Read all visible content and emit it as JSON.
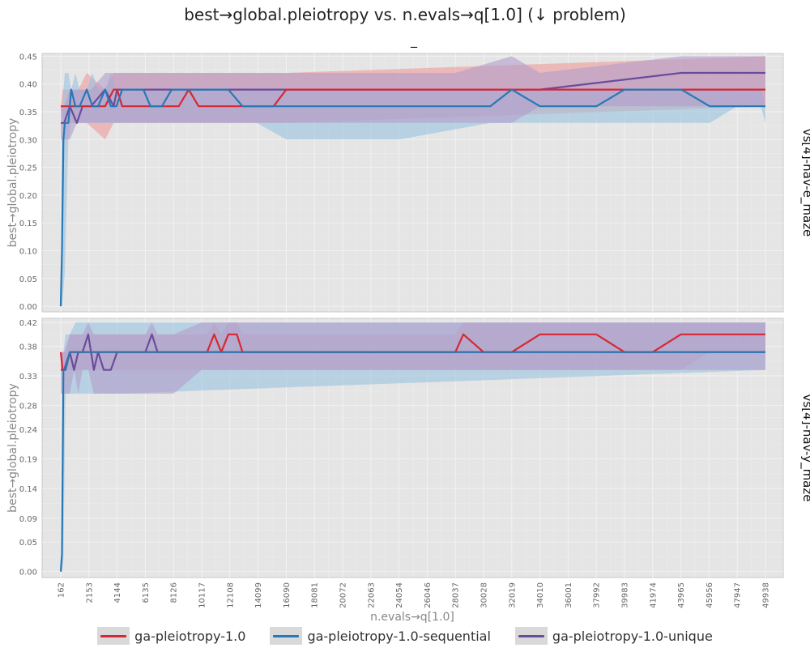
{
  "figure": {
    "title": "best→global.pleiotropy vs. n.evals→q[1.0] (↓ problem)",
    "subtitle": "_"
  },
  "chart_data": {
    "type": "line",
    "title": "best→global.pleiotropy vs. n.evals→q[1.0] (↓ problem)",
    "subtitle": "_",
    "xlabel": "n.evals→q[1.0]",
    "x_ticks": [
      162,
      2153,
      4144,
      6135,
      8126,
      10117,
      12108,
      14099,
      16090,
      18081,
      20072,
      22063,
      24054,
      26046,
      28037,
      30028,
      32019,
      34010,
      36001,
      37992,
      39983,
      41974,
      43965,
      45956,
      47947,
      49938
    ],
    "xlim": [
      162,
      49938
    ],
    "grid": true,
    "legend_placement": "bottom",
    "colors": {
      "ga-pleiotropy-1.0": "#d62833",
      "ga-pleiotropy-1.0-sequential": "#2878b5",
      "ga-pleiotropy-1.0-unique": "#6a4c9c",
      "panel_bg": "#e5e5e5",
      "band_red": "#ef9a9a",
      "band_blue": "#9ac3e0",
      "band_purple": "#b39ccc"
    },
    "panels": [
      {
        "facet_label": "vs[4]-nav-e_maze",
        "ylabel": "best→global.pleiotropy",
        "y_ticks": [
          "0.00",
          "0.05",
          "0.10",
          "0.15",
          "0.20",
          "0.25",
          "0.30",
          "0.35",
          "0.40",
          "0.45"
        ],
        "ylim": [
          -0.01,
          0.455
        ],
        "series": [
          {
            "name": "ga-pleiotropy-1.0",
            "x": [
              162,
              300,
              900,
              1400,
              2000,
              3300,
              3900,
              4144,
              4500,
              8500,
              9200,
              9900,
              12300,
              13500,
              15200,
              16090,
              49938
            ],
            "y": [
              0.36,
              0.36,
              0.36,
              0.36,
              0.36,
              0.36,
              0.39,
              0.39,
              0.36,
              0.36,
              0.39,
              0.36,
              0.36,
              0.36,
              0.36,
              0.39,
              0.39
            ],
            "band_low": [
              0.36,
              0.33,
              0.33,
              0.33,
              0.33,
              0.3,
              0.33,
              0.33,
              0.33,
              0.33,
              0.33,
              0.33,
              0.33,
              0.33,
              0.33,
              0.33,
              0.36
            ],
            "band_high": [
              0.36,
              0.39,
              0.39,
              0.39,
              0.42,
              0.39,
              0.42,
              0.42,
              0.42,
              0.42,
              0.42,
              0.42,
              0.42,
              0.42,
              0.42,
              0.42,
              0.45
            ]
          },
          {
            "name": "ga-pleiotropy-1.0-sequential",
            "x": [
              162,
              250,
              350,
              450,
              700,
              900,
              1200,
              1500,
              2000,
              2400,
              2800,
              3300,
              3700,
              4100,
              4500,
              5200,
              6000,
              6500,
              7300,
              8000,
              9000,
              12000,
              13000,
              14000,
              16090,
              20000,
              24000,
              24054,
              30500,
              32019,
              34010,
              38000,
              39983,
              41000,
              44000,
              46000,
              47947,
              49600,
              49938
            ],
            "y": [
              0.0,
              0.1,
              0.3,
              0.33,
              0.33,
              0.39,
              0.36,
              0.36,
              0.39,
              0.36,
              0.36,
              0.39,
              0.36,
              0.36,
              0.39,
              0.39,
              0.39,
              0.36,
              0.36,
              0.39,
              0.39,
              0.39,
              0.36,
              0.36,
              0.36,
              0.36,
              0.36,
              0.36,
              0.36,
              0.39,
              0.36,
              0.36,
              0.39,
              0.39,
              0.39,
              0.36,
              0.36,
              0.36,
              0.36
            ],
            "band_low": [
              0.0,
              0.0,
              0.03,
              0.06,
              0.3,
              0.33,
              0.33,
              0.33,
              0.33,
              0.33,
              0.33,
              0.33,
              0.33,
              0.33,
              0.33,
              0.33,
              0.33,
              0.33,
              0.33,
              0.33,
              0.33,
              0.33,
              0.33,
              0.33,
              0.3,
              0.3,
              0.3,
              0.3,
              0.33,
              0.33,
              0.33,
              0.33,
              0.33,
              0.33,
              0.33,
              0.33,
              0.36,
              0.36,
              0.33
            ],
            "band_high": [
              0.0,
              0.33,
              0.39,
              0.42,
              0.42,
              0.39,
              0.42,
              0.39,
              0.39,
              0.42,
              0.39,
              0.39,
              0.42,
              0.39,
              0.39,
              0.39,
              0.39,
              0.39,
              0.39,
              0.39,
              0.39,
              0.39,
              0.39,
              0.39,
              0.39,
              0.39,
              0.39,
              0.39,
              0.39,
              0.39,
              0.39,
              0.39,
              0.39,
              0.39,
              0.39,
              0.39,
              0.39,
              0.39,
              0.36
            ]
          },
          {
            "name": "ga-pleiotropy-1.0-unique",
            "x": [
              162,
              400,
              800,
              1300,
              1700,
              2300,
              3300,
              3900,
              4144,
              4500,
              28000,
              28037,
              32019,
              34010,
              44000,
              49938
            ],
            "y": [
              0.33,
              0.33,
              0.36,
              0.33,
              0.36,
              0.36,
              0.39,
              0.36,
              0.39,
              0.39,
              0.39,
              0.39,
              0.39,
              0.39,
              0.42,
              0.42
            ],
            "band_low": [
              0.3,
              0.3,
              0.3,
              0.33,
              0.33,
              0.33,
              0.33,
              0.33,
              0.33,
              0.33,
              0.33,
              0.33,
              0.33,
              0.36,
              0.36,
              0.36
            ],
            "band_high": [
              0.36,
              0.36,
              0.39,
              0.39,
              0.39,
              0.39,
              0.42,
              0.42,
              0.42,
              0.42,
              0.42,
              0.42,
              0.45,
              0.42,
              0.45,
              0.45
            ]
          }
        ]
      },
      {
        "facet_label": "vs[4]-nav-y_maze",
        "ylabel": "best→global.pleiotropy",
        "y_ticks": [
          "0.00",
          "0.05",
          "0.09",
          "0.14",
          "0.19",
          "0.24",
          "0.28",
          "0.33",
          "0.38",
          "0.42"
        ],
        "ylim": [
          -0.01,
          0.427
        ],
        "series": [
          {
            "name": "ga-pleiotropy-1.0",
            "x": [
              162,
              300,
              500,
              800,
              1200,
              2153,
              4144,
              6135,
              8126,
              10500,
              11000,
              11500,
              12000,
              12600,
              13000,
              14099,
              18081,
              22063,
              26046,
              28037,
              28600,
              30028,
              32019,
              34010,
              36001,
              37992,
              39983,
              41974,
              43965,
              45956,
              47947,
              49938
            ],
            "y": [
              0.37,
              0.34,
              0.34,
              0.37,
              0.37,
              0.37,
              0.37,
              0.37,
              0.37,
              0.37,
              0.4,
              0.37,
              0.4,
              0.4,
              0.37,
              0.37,
              0.37,
              0.37,
              0.37,
              0.37,
              0.4,
              0.37,
              0.37,
              0.4,
              0.4,
              0.4,
              0.37,
              0.37,
              0.4,
              0.4,
              0.4,
              0.4
            ],
            "band_low": [
              0.34,
              0.34,
              0.34,
              0.34,
              0.34,
              0.34,
              0.34,
              0.34,
              0.34,
              0.34,
              0.34,
              0.34,
              0.34,
              0.34,
              0.34,
              0.34,
              0.34,
              0.34,
              0.34,
              0.34,
              0.34,
              0.34,
              0.34,
              0.34,
              0.34,
              0.34,
              0.34,
              0.34,
              0.34,
              0.37,
              0.37,
              0.37
            ],
            "band_high": [
              0.37,
              0.37,
              0.37,
              0.4,
              0.4,
              0.4,
              0.4,
              0.4,
              0.4,
              0.4,
              0.42,
              0.4,
              0.42,
              0.42,
              0.4,
              0.4,
              0.4,
              0.4,
              0.4,
              0.4,
              0.42,
              0.42,
              0.42,
              0.42,
              0.42,
              0.42,
              0.42,
              0.42,
              0.42,
              0.42,
              0.42,
              0.42
            ]
          },
          {
            "name": "ga-pleiotropy-1.0-sequential",
            "x": [
              162,
              250,
              350,
              500,
              800,
              1200,
              2153,
              4144,
              49938
            ],
            "y": [
              0.0,
              0.03,
              0.34,
              0.34,
              0.37,
              0.37,
              0.37,
              0.37,
              0.37
            ],
            "band_low": [
              0.0,
              0.0,
              0.02,
              0.3,
              0.3,
              0.3,
              0.3,
              0.3,
              0.34
            ],
            "band_high": [
              0.0,
              0.05,
              0.37,
              0.4,
              0.4,
              0.42,
              0.42,
              0.42,
              0.42
            ]
          },
          {
            "name": "ga-pleiotropy-1.0-unique",
            "x": [
              162,
              400,
              800,
              1100,
              1400,
              1700,
              2100,
              2500,
              2800,
              3200,
              3700,
              4144,
              6135,
              6600,
              7000,
              8126,
              10117,
              24054,
              28037,
              49938
            ],
            "y": [
              0.34,
              0.34,
              0.37,
              0.34,
              0.37,
              0.37,
              0.4,
              0.34,
              0.37,
              0.34,
              0.34,
              0.37,
              0.37,
              0.4,
              0.37,
              0.37,
              0.37,
              0.37,
              0.37,
              0.37
            ],
            "band_low": [
              0.3,
              0.3,
              0.3,
              0.34,
              0.3,
              0.34,
              0.34,
              0.3,
              0.3,
              0.3,
              0.3,
              0.3,
              0.3,
              0.3,
              0.3,
              0.3,
              0.34,
              0.34,
              0.34,
              0.34
            ],
            "band_high": [
              0.37,
              0.37,
              0.4,
              0.4,
              0.4,
              0.4,
              0.42,
              0.4,
              0.4,
              0.4,
              0.4,
              0.4,
              0.4,
              0.42,
              0.4,
              0.4,
              0.42,
              0.42,
              0.42,
              0.42
            ]
          }
        ]
      }
    ]
  },
  "legend": {
    "items": [
      {
        "label": "ga-pleiotropy-1.0",
        "color": "#d62833"
      },
      {
        "label": "ga-pleiotropy-1.0-sequential",
        "color": "#2878b5"
      },
      {
        "label": "ga-pleiotropy-1.0-unique",
        "color": "#6a4c9c"
      }
    ]
  }
}
